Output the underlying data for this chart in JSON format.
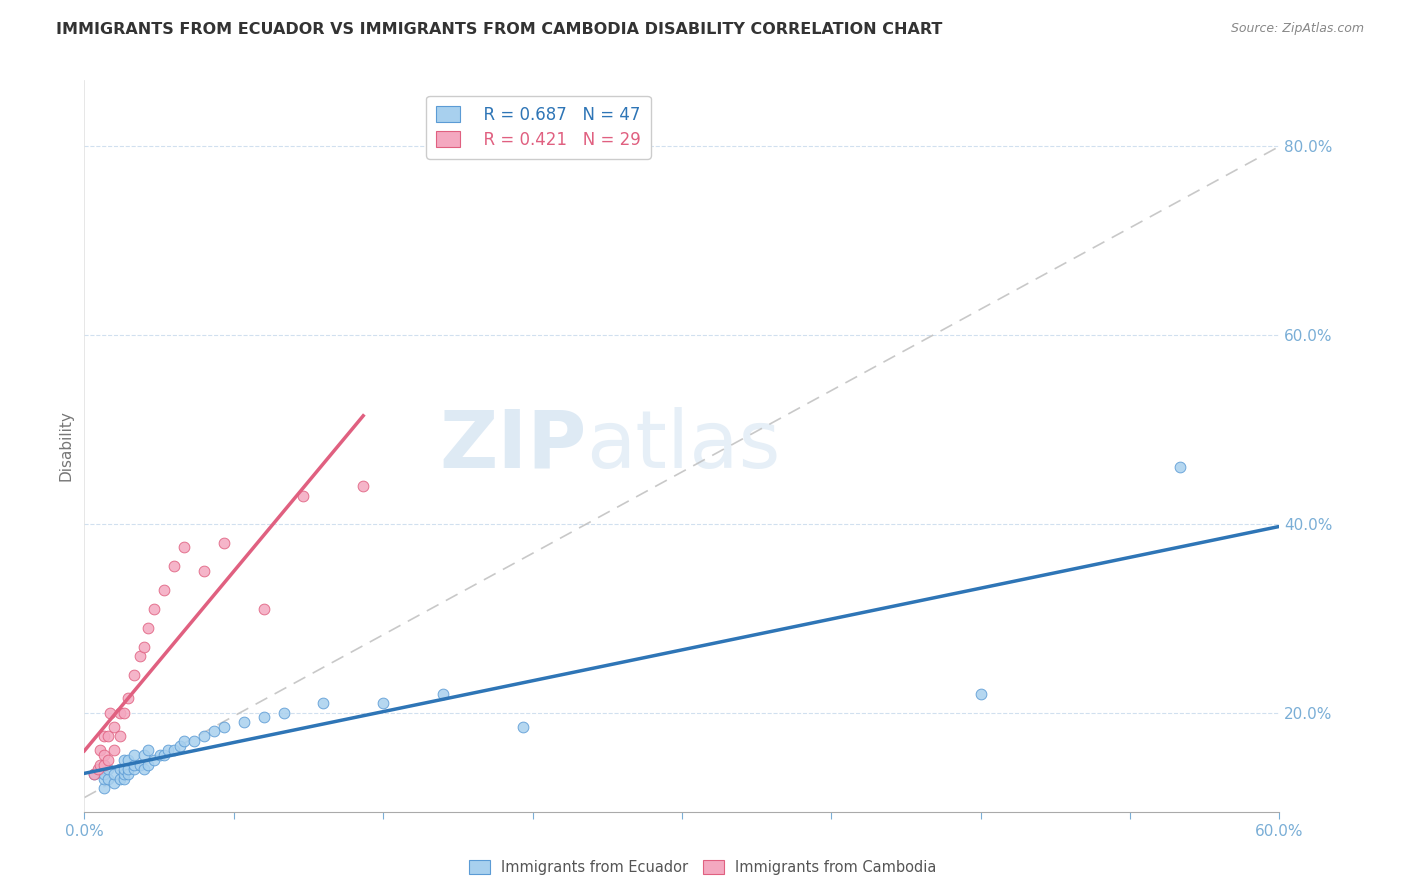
{
  "title": "IMMIGRANTS FROM ECUADOR VS IMMIGRANTS FROM CAMBODIA DISABILITY CORRELATION CHART",
  "source": "Source: ZipAtlas.com",
  "ylabel": "Disability",
  "ylabel_right_vals": [
    0.8,
    0.6,
    0.4,
    0.2
  ],
  "xlim": [
    0.0,
    0.6
  ],
  "ylim": [
    0.095,
    0.87
  ],
  "ecuador_color": "#A8D0EE",
  "ecuador_edge": "#5B9BD5",
  "cambodia_color": "#F4A8C0",
  "cambodia_edge": "#E06080",
  "trend_ecuador_color": "#2E75B6",
  "trend_cambodia_color": "#E06080",
  "ref_line_color": "#BBBBBB",
  "legend_r_ecuador": "R = 0.687",
  "legend_n_ecuador": "N = 47",
  "legend_r_cambodia": "R = 0.421",
  "legend_n_cambodia": "N = 29",
  "watermark_zip": "ZIP",
  "watermark_atlas": "atlas",
  "ecuador_x": [
    0.005,
    0.008,
    0.01,
    0.01,
    0.01,
    0.01,
    0.012,
    0.012,
    0.015,
    0.015,
    0.018,
    0.018,
    0.02,
    0.02,
    0.02,
    0.02,
    0.022,
    0.022,
    0.022,
    0.025,
    0.025,
    0.025,
    0.028,
    0.03,
    0.03,
    0.032,
    0.032,
    0.035,
    0.038,
    0.04,
    0.042,
    0.045,
    0.048,
    0.05,
    0.055,
    0.06,
    0.065,
    0.07,
    0.08,
    0.09,
    0.1,
    0.12,
    0.15,
    0.18,
    0.22,
    0.45,
    0.55
  ],
  "ecuador_y": [
    0.135,
    0.14,
    0.12,
    0.13,
    0.135,
    0.145,
    0.13,
    0.14,
    0.125,
    0.135,
    0.13,
    0.14,
    0.13,
    0.135,
    0.14,
    0.15,
    0.135,
    0.14,
    0.15,
    0.14,
    0.145,
    0.155,
    0.145,
    0.14,
    0.155,
    0.145,
    0.16,
    0.15,
    0.155,
    0.155,
    0.16,
    0.16,
    0.165,
    0.17,
    0.17,
    0.175,
    0.18,
    0.185,
    0.19,
    0.195,
    0.2,
    0.21,
    0.21,
    0.22,
    0.185,
    0.22,
    0.46
  ],
  "cambodia_x": [
    0.005,
    0.007,
    0.008,
    0.008,
    0.01,
    0.01,
    0.01,
    0.012,
    0.012,
    0.013,
    0.015,
    0.015,
    0.018,
    0.018,
    0.02,
    0.022,
    0.025,
    0.028,
    0.03,
    0.032,
    0.035,
    0.04,
    0.045,
    0.05,
    0.06,
    0.07,
    0.09,
    0.11,
    0.14
  ],
  "cambodia_y": [
    0.135,
    0.14,
    0.145,
    0.16,
    0.145,
    0.155,
    0.175,
    0.15,
    0.175,
    0.2,
    0.16,
    0.185,
    0.175,
    0.2,
    0.2,
    0.215,
    0.24,
    0.26,
    0.27,
    0.29,
    0.31,
    0.33,
    0.355,
    0.375,
    0.35,
    0.38,
    0.31,
    0.43,
    0.44
  ],
  "ref_line_x": [
    0.0,
    0.6
  ],
  "ref_line_y": [
    0.11,
    0.8
  ]
}
